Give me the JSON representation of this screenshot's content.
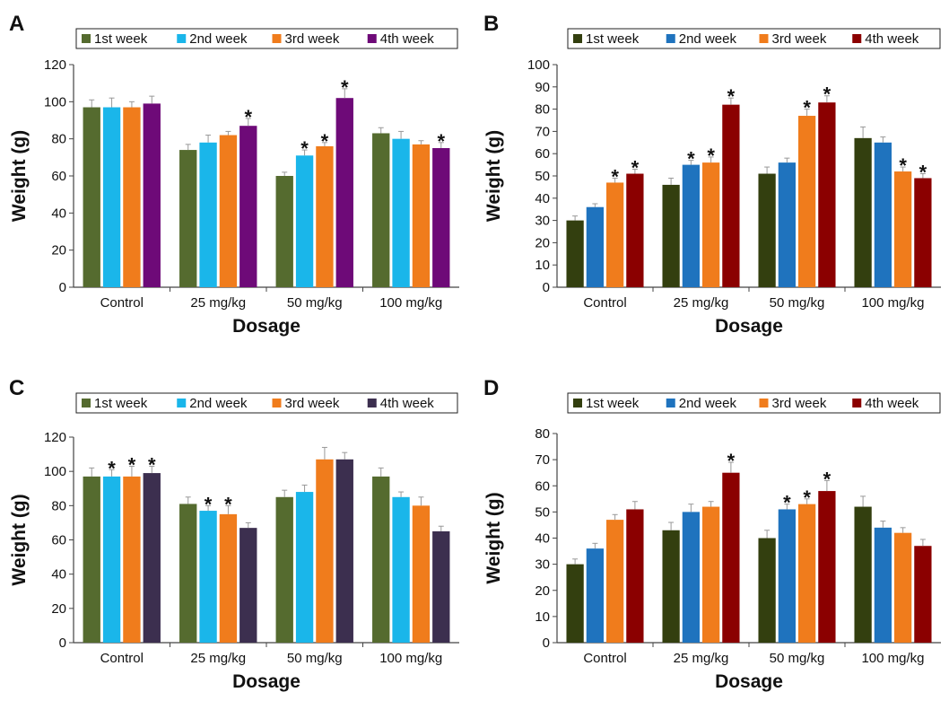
{
  "chart_data": [
    {
      "panel": "A",
      "type": "bar",
      "xlabel": "Dosage",
      "ylabel": "Weight (g)",
      "ylim": [
        0,
        120
      ],
      "yticks": [
        0,
        20,
        40,
        60,
        80,
        100,
        120
      ],
      "grid": false,
      "legend_position": "top",
      "categories": [
        "Control",
        "25 mg/kg",
        "50 mg/kg",
        "100 mg/kg"
      ],
      "series": [
        {
          "name": "1st week",
          "color": "#556b2f",
          "values": [
            97,
            74,
            60,
            83
          ],
          "errors": [
            4,
            3,
            2,
            3
          ],
          "significant": [
            false,
            false,
            false,
            false
          ]
        },
        {
          "name": "2nd week",
          "color": "#1ab6ea",
          "values": [
            97,
            78,
            71,
            80
          ],
          "errors": [
            5,
            4,
            3,
            4
          ],
          "significant": [
            false,
            false,
            true,
            false
          ]
        },
        {
          "name": "3rd week",
          "color": "#f07c1c",
          "values": [
            97,
            82,
            76,
            77
          ],
          "errors": [
            3,
            2,
            2,
            2
          ],
          "significant": [
            false,
            false,
            true,
            false
          ]
        },
        {
          "name": "4th week",
          "color": "#6e0a78",
          "values": [
            99,
            87,
            102,
            75
          ],
          "errors": [
            4,
            4,
            5,
            3
          ],
          "significant": [
            false,
            true,
            true,
            true
          ]
        }
      ]
    },
    {
      "panel": "B",
      "type": "bar",
      "xlabel": "Dosage",
      "ylabel": "Weight (g)",
      "ylim": [
        0,
        100
      ],
      "yticks": [
        0,
        10,
        20,
        30,
        40,
        50,
        60,
        70,
        80,
        90,
        100
      ],
      "grid": false,
      "legend_position": "top",
      "categories": [
        "Control",
        "25 mg/kg",
        "50 mg/kg",
        "100 mg/kg"
      ],
      "series": [
        {
          "name": "1st week",
          "color": "#333f0f",
          "values": [
            30,
            46,
            51,
            67
          ],
          "errors": [
            2,
            3,
            3,
            5
          ],
          "significant": [
            false,
            false,
            false,
            false
          ]
        },
        {
          "name": "2nd week",
          "color": "#1f73be",
          "values": [
            36,
            55,
            56,
            65
          ],
          "errors": [
            1.5,
            2,
            2,
            2.5
          ],
          "significant": [
            false,
            true,
            false,
            false
          ]
        },
        {
          "name": "3rd week",
          "color": "#f07c1c",
          "values": [
            47,
            56,
            77,
            52
          ],
          "errors": [
            2,
            2.5,
            3,
            2
          ],
          "significant": [
            true,
            true,
            true,
            true
          ]
        },
        {
          "name": "4th week",
          "color": "#8b0000",
          "values": [
            51,
            82,
            83,
            49
          ],
          "errors": [
            2,
            3,
            3,
            2
          ],
          "significant": [
            true,
            true,
            true,
            true
          ]
        }
      ]
    },
    {
      "panel": "C",
      "type": "bar",
      "xlabel": "Dosage",
      "ylabel": "Weight (g)",
      "ylim": [
        0,
        120
      ],
      "yticks": [
        0,
        20,
        40,
        60,
        80,
        100,
        120
      ],
      "grid": false,
      "legend_position": "top",
      "categories": [
        "Control",
        "25 mg/kg",
        "50 mg/kg",
        "100 mg/kg"
      ],
      "series": [
        {
          "name": "1st week",
          "color": "#556b2f",
          "values": [
            97,
            81,
            85,
            97
          ],
          "errors": [
            5,
            4,
            4,
            5
          ],
          "significant": [
            false,
            false,
            false,
            false
          ]
        },
        {
          "name": "2nd week",
          "color": "#1ab6ea",
          "values": [
            97,
            77,
            88,
            85
          ],
          "errors": [
            4,
            3,
            4,
            3
          ],
          "significant": [
            true,
            true,
            false,
            false
          ]
        },
        {
          "name": "3rd week",
          "color": "#f07c1c",
          "values": [
            97,
            75,
            107,
            80
          ],
          "errors": [
            6,
            5,
            7,
            5
          ],
          "significant": [
            true,
            true,
            false,
            false
          ]
        },
        {
          "name": "4th week",
          "color": "#3c2f4f",
          "values": [
            99,
            67,
            107,
            65
          ],
          "errors": [
            4,
            3,
            4,
            3
          ],
          "significant": [
            true,
            false,
            false,
            false
          ]
        }
      ]
    },
    {
      "panel": "D",
      "type": "bar",
      "xlabel": "Dosage",
      "ylabel": "Weight (g)",
      "ylim": [
        0,
        80
      ],
      "yticks": [
        0,
        10,
        20,
        30,
        40,
        50,
        60,
        70,
        80
      ],
      "grid": false,
      "legend_position": "top",
      "categories": [
        "Control",
        "25 mg/kg",
        "50 mg/kg",
        "100 mg/kg"
      ],
      "series": [
        {
          "name": "1st week",
          "color": "#333f0f",
          "values": [
            30,
            43,
            40,
            52
          ],
          "errors": [
            2,
            3,
            3,
            4
          ],
          "significant": [
            false,
            false,
            false,
            false
          ]
        },
        {
          "name": "2nd week",
          "color": "#1f73be",
          "values": [
            36,
            50,
            51,
            44
          ],
          "errors": [
            2,
            3,
            2,
            2.5
          ],
          "significant": [
            false,
            false,
            true,
            false
          ]
        },
        {
          "name": "3rd week",
          "color": "#f07c1c",
          "values": [
            47,
            52,
            53,
            42
          ],
          "errors": [
            2,
            2,
            2,
            2
          ],
          "significant": [
            false,
            false,
            true,
            false
          ]
        },
        {
          "name": "4th week",
          "color": "#8b0000",
          "values": [
            51,
            65,
            58,
            37
          ],
          "errors": [
            3,
            4,
            4,
            2.5
          ],
          "significant": [
            false,
            true,
            true,
            false
          ]
        }
      ]
    }
  ],
  "significance_marker": "*"
}
